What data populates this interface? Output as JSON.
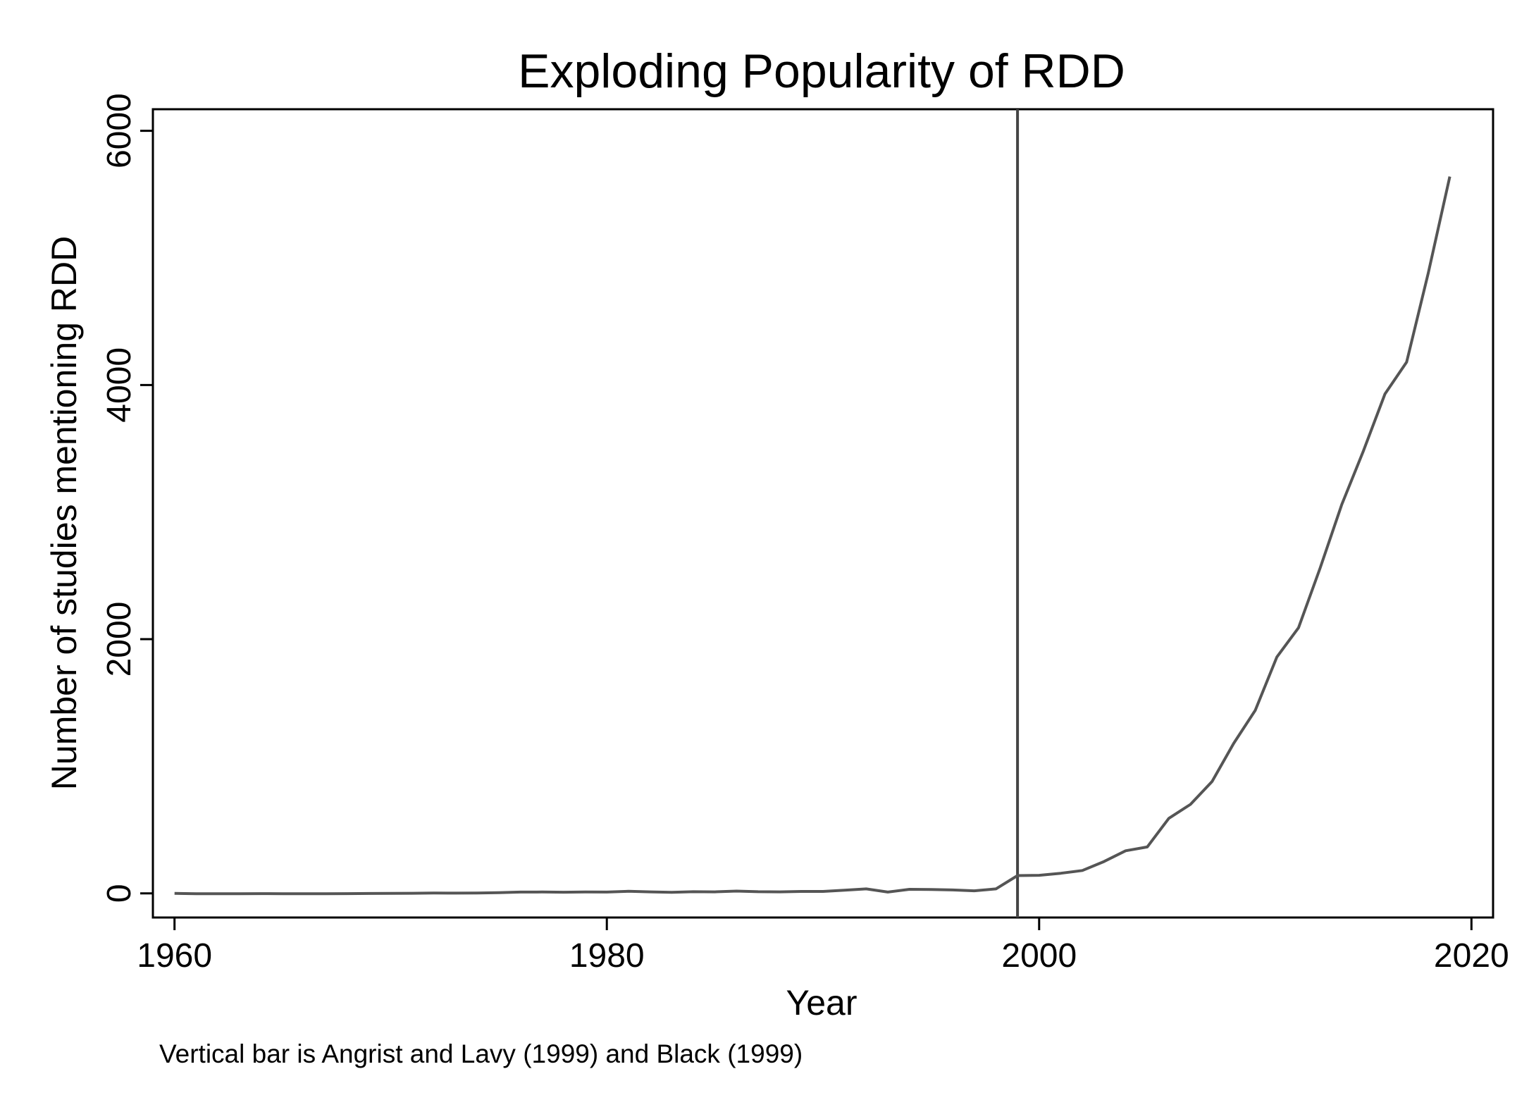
{
  "chart_data": {
    "type": "line",
    "title": "Exploding Popularity of RDD",
    "xlabel": "Year",
    "ylabel": "Number of studies mentioning RDD",
    "note": "Vertical bar is Angrist and Lavy (1999) and Black (1999)",
    "xlim": [
      1959,
      2021
    ],
    "ylim": [
      -190,
      6170
    ],
    "x_ticks": [
      1960,
      1980,
      2000,
      2020
    ],
    "y_ticks": [
      0,
      2000,
      4000,
      6000
    ],
    "grid": false,
    "legend": "none",
    "reference_line": {
      "axis": "x",
      "value": 1999
    },
    "line_color": "#555555",
    "series": [
      {
        "x": [
          1960,
          1961,
          1962,
          1963,
          1964,
          1965,
          1966,
          1967,
          1968,
          1969,
          1970,
          1971,
          1972,
          1973,
          1974,
          1975,
          1976,
          1977,
          1978,
          1979,
          1980,
          1981,
          1982,
          1983,
          1984,
          1985,
          1986,
          1987,
          1988,
          1989,
          1990,
          1991,
          1992,
          1993,
          1994,
          1995,
          1996,
          1997,
          1998,
          1999,
          2000,
          2001,
          2002,
          2003,
          2004,
          2005,
          2006,
          2007,
          2008,
          2009,
          2010,
          2011,
          2012,
          2013,
          2014,
          2015,
          2016,
          2017,
          2018,
          2019
        ],
        "values": [
          0,
          -3,
          -3,
          -3,
          -2,
          -3,
          -3,
          -3,
          -2,
          -1,
          0,
          1,
          3,
          2,
          3,
          5,
          10,
          11,
          9,
          11,
          10,
          16,
          12,
          8,
          13,
          12,
          18,
          13,
          12,
          15,
          15,
          25,
          35,
          10,
          32,
          30,
          27,
          20,
          35,
          140,
          142,
          158,
          180,
          250,
          335,
          365,
          590,
          700,
          880,
          1180,
          1440,
          1860,
          2090,
          2560,
          3060,
          3480,
          3930,
          4180,
          4880,
          5640
        ]
      }
    ]
  }
}
